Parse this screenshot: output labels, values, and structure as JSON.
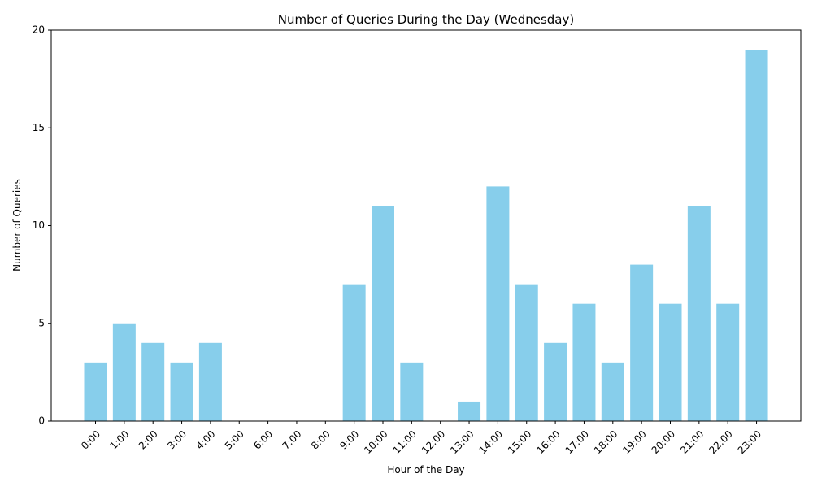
{
  "chart_data": {
    "type": "bar",
    "title": "Number of Queries During the Day (Wednesday)",
    "xlabel": "Hour of the Day",
    "ylabel": "Number of Queries",
    "categories": [
      "0:00",
      "1:00",
      "2:00",
      "3:00",
      "4:00",
      "5:00",
      "6:00",
      "7:00",
      "8:00",
      "9:00",
      "10:00",
      "11:00",
      "12:00",
      "13:00",
      "14:00",
      "15:00",
      "16:00",
      "17:00",
      "18:00",
      "19:00",
      "20:00",
      "21:00",
      "22:00",
      "23:00"
    ],
    "values": [
      3,
      5,
      4,
      3,
      4,
      0,
      0,
      0,
      0,
      7,
      11,
      3,
      0,
      1,
      12,
      7,
      4,
      6,
      3,
      8,
      6,
      11,
      6,
      19
    ],
    "ylim": [
      0,
      20
    ],
    "yticks": [
      0,
      5,
      10,
      15,
      20
    ],
    "bar_color": "#87ceeb",
    "grid": false,
    "legend": "none",
    "xtick_rotation_deg": 45
  }
}
